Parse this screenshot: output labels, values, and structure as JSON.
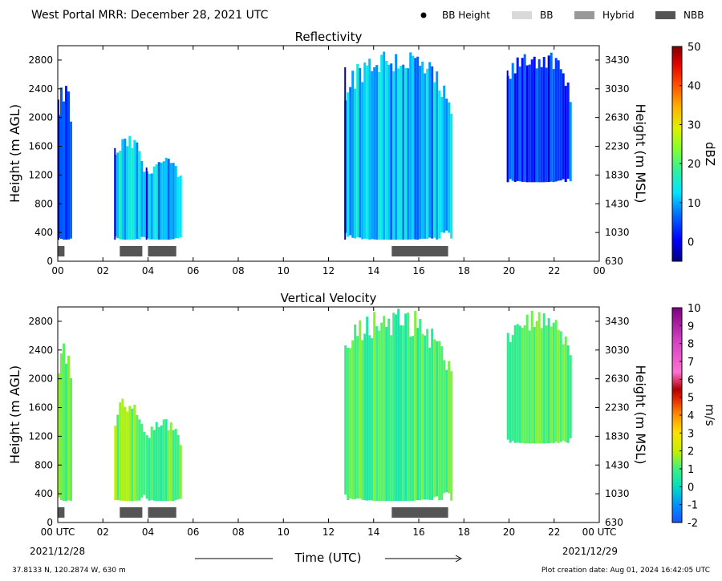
{
  "header": {
    "title": "West Portal MRR:  December 28, 2021 UTC",
    "legend": [
      {
        "label": "BB Height",
        "marker": "dot",
        "color": "#000000"
      },
      {
        "label": "BB",
        "marker": "box",
        "color": "#d9d9d9"
      },
      {
        "label": "Hybrid",
        "marker": "box",
        "color": "#999999"
      },
      {
        "label": "NBB",
        "marker": "box",
        "color": "#555555"
      }
    ]
  },
  "footer": {
    "coords": "37.8133 N, 120.2874 W, 630 m",
    "creation_date": "Plot creation date: Aug 01, 2024 16:42:05 UTC",
    "xlabel": "Time (UTC)",
    "date_left": "2021/12/28",
    "date_right": "2021/12/29"
  },
  "chart_data": [
    {
      "type": "heatmap",
      "title": "Reflectivity",
      "ylabel": "Height (m AGL)",
      "y2label": "Height (m MSL)",
      "colorbar_label": "dBZ",
      "xlim": [
        0,
        24
      ],
      "ylim": [
        0,
        3000
      ],
      "xticks": [
        "00",
        "02",
        "04",
        "06",
        "08",
        "10",
        "12",
        "14",
        "16",
        "18",
        "20",
        "22",
        "00"
      ],
      "yticks": [
        0,
        400,
        800,
        1200,
        1600,
        2000,
        2400,
        2800
      ],
      "y2ticks": [
        630,
        1030,
        1430,
        1830,
        2230,
        2630,
        3030,
        3430
      ],
      "colorbar_range": [
        -5,
        50
      ],
      "colorbar_ticks": [
        0,
        10,
        20,
        30,
        40,
        50
      ],
      "echoes": [
        {
          "t_start": 0.0,
          "t_end": 0.6,
          "h_bottom": 300,
          "h_top": 2500,
          "value": 4
        },
        {
          "t_start": 2.5,
          "t_end": 3.8,
          "h_bottom": 300,
          "h_top": 1750,
          "value": 12
        },
        {
          "t_start": 3.9,
          "t_end": 5.5,
          "h_bottom": 300,
          "h_top": 1450,
          "value": 11
        },
        {
          "t_start": 12.7,
          "t_end": 17.4,
          "h_bottom": 300,
          "h_top": 3000,
          "value": 10
        },
        {
          "t_start": 19.9,
          "t_end": 22.7,
          "h_bottom": 1100,
          "h_top": 2950,
          "value": 4
        }
      ],
      "nbb_segments": [
        [
          0.0,
          0.3
        ],
        [
          2.75,
          3.75
        ],
        [
          4.0,
          5.25
        ],
        [
          14.8,
          17.3
        ]
      ]
    },
    {
      "type": "heatmap",
      "title": "Vertical Velocity",
      "ylabel": "Height (m AGL)",
      "y2label": "Height (m MSL)",
      "colorbar_label": "m/s",
      "xlim": [
        0,
        24
      ],
      "ylim": [
        0,
        3000
      ],
      "xticks": [
        "00 UTC",
        "02",
        "04",
        "06",
        "08",
        "10",
        "12",
        "14",
        "16",
        "18",
        "20",
        "22",
        "00 UTC"
      ],
      "yticks": [
        0,
        400,
        800,
        1200,
        1600,
        2000,
        2400,
        2800
      ],
      "y2ticks": [
        630,
        1030,
        1430,
        1830,
        2230,
        2630,
        3030,
        3430
      ],
      "colorbar_range": [
        -2,
        10
      ],
      "colorbar_ticks": [
        -2,
        -1,
        0,
        1,
        2,
        3,
        4,
        5,
        6,
        7,
        8,
        9,
        10
      ],
      "echoes": [
        {
          "t_start": 0.0,
          "t_end": 0.6,
          "h_bottom": 300,
          "h_top": 2500,
          "value": 1.0
        },
        {
          "t_start": 2.5,
          "t_end": 3.8,
          "h_bottom": 300,
          "h_top": 1750,
          "value": 1.5
        },
        {
          "t_start": 3.9,
          "t_end": 5.5,
          "h_bottom": 300,
          "h_top": 1450,
          "value": 1.0
        },
        {
          "t_start": 12.7,
          "t_end": 17.4,
          "h_bottom": 300,
          "h_top": 3000,
          "value": 1.0
        },
        {
          "t_start": 19.9,
          "t_end": 22.7,
          "h_bottom": 1100,
          "h_top": 2950,
          "value": 1.0
        }
      ],
      "nbb_segments": [
        [
          0.0,
          0.3
        ],
        [
          2.75,
          3.75
        ],
        [
          4.0,
          5.25
        ],
        [
          14.8,
          17.3
        ]
      ]
    }
  ]
}
